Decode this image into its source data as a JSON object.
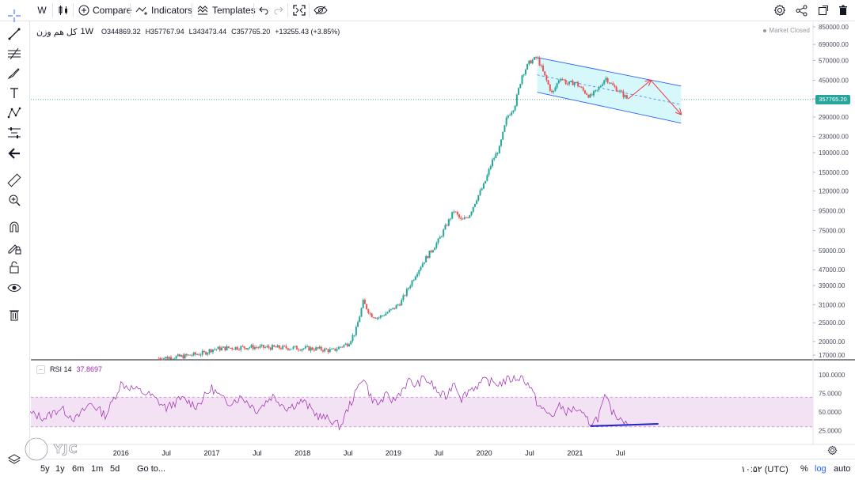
{
  "toolbar": {
    "interval": "W",
    "compare_label": "Compare",
    "indicators_label": "Indicators",
    "templates_label": "Templates"
  },
  "legend": {
    "symbol": "کل هم وزن",
    "timeframe": "1W",
    "open": "O344869.32",
    "high": "H357767.94",
    "low": "L343473.44",
    "close": "C357765.20",
    "change": "+13255.43 (+3.85%)",
    "market_status": "Market Closed"
  },
  "last_price_label": "357765.20",
  "rsi": {
    "title": "RSI 14",
    "value": "37.8697",
    "upper_band": 70,
    "lower_band": 30
  },
  "bottom": {
    "ranges": [
      "5y",
      "1y",
      "6m",
      "1m",
      "5d"
    ],
    "goto_label": "Go to...",
    "clock": "۱۰:۵۲ (UTC)",
    "percent_label": "%",
    "log_label": "log",
    "auto_label": "auto"
  },
  "watermark": "YJC",
  "colors": {
    "up": "#26a69a",
    "down": "#ef5350",
    "rsi_line": "#9c27b0",
    "channel_fill": "#d6f8fb",
    "channel_line": "#2962ff",
    "arrow": "#f23645",
    "rsi_trendline": "#1e22c9"
  },
  "chart_data": [
    {
      "type": "candlestick",
      "scale": "log",
      "price_axis_ticks": [
        17000,
        20000,
        25000,
        31000,
        39000,
        47000,
        59000,
        75000,
        95000,
        120000,
        150000,
        190000,
        230000,
        290000,
        360000,
        450000,
        570000,
        690000,
        850000
      ],
      "price_axis_labels": [
        "17000.00",
        "20000.00",
        "25000.00",
        "31000.00",
        "39000.00",
        "47000.00",
        "59000.00",
        "75000.00",
        "95000.00",
        "120000.00",
        "150000.00",
        "190000.00",
        "230000.00",
        "290000.00",
        "360000.00",
        "450000.00",
        "570000.00",
        "690000.00",
        "850000.00"
      ],
      "time_axis_labels": [
        "2016",
        "Jul",
        "2017",
        "Jul",
        "2018",
        "Jul",
        "2019",
        "Jul",
        "2020",
        "Jul",
        "2021",
        "Jul"
      ],
      "ylim": [
        15500,
        950000
      ],
      "last_price": 357765.2,
      "close_path": [
        [
          "2016-06",
          16400
        ],
        [
          "2016-09",
          16700
        ],
        [
          "2016-12",
          17400
        ],
        [
          "2017-01",
          18200
        ],
        [
          "2017-03",
          18500
        ],
        [
          "2017-06",
          18700
        ],
        [
          "2017-09",
          18600
        ],
        [
          "2017-12",
          18500
        ],
        [
          "2018-03",
          18300
        ],
        [
          "2018-05",
          17900
        ],
        [
          "2018-06",
          18800
        ],
        [
          "2018-07",
          19500
        ],
        [
          "2018-08",
          22500
        ],
        [
          "2018-09",
          32000
        ],
        [
          "2018-10",
          27500
        ],
        [
          "2018-11",
          26500
        ],
        [
          "2018-12",
          28000
        ],
        [
          "2019-01",
          29500
        ],
        [
          "2019-02",
          32000
        ],
        [
          "2019-03",
          38000
        ],
        [
          "2019-04",
          45000
        ],
        [
          "2019-05",
          52000
        ],
        [
          "2019-06",
          59000
        ],
        [
          "2019-07",
          67000
        ],
        [
          "2019-08",
          80000
        ],
        [
          "2019-09",
          95000
        ],
        [
          "2019-10",
          84000
        ],
        [
          "2019-11",
          90000
        ],
        [
          "2019-12",
          110000
        ],
        [
          "2020-01",
          130000
        ],
        [
          "2020-02",
          170000
        ],
        [
          "2020-03",
          200000
        ],
        [
          "2020-04",
          290000
        ],
        [
          "2020-05",
          330000
        ],
        [
          "2020-06",
          480000
        ],
        [
          "2020-07",
          560000
        ],
        [
          "2020-08",
          590000
        ],
        [
          "2020-09",
          470000
        ],
        [
          "2020-10",
          380000
        ],
        [
          "2020-11",
          470000
        ],
        [
          "2020-12",
          430000
        ],
        [
          "2021-01",
          440000
        ],
        [
          "2021-02",
          400000
        ],
        [
          "2021-03",
          370000
        ],
        [
          "2021-04",
          400000
        ],
        [
          "2021-05",
          465000
        ],
        [
          "2021-06",
          420000
        ],
        [
          "2021-07",
          390000
        ],
        [
          "2021-08",
          357765
        ]
      ],
      "annotations": {
        "channel": {
          "upper": [
            [
              "2020-08",
              590000
            ],
            [
              "2022-03",
              420000
            ]
          ],
          "lower": [
            [
              "2020-08",
              390000
            ],
            [
              "2022-03",
              270000
            ]
          ]
        },
        "arrows": [
          [
            [
              "2021-08",
              360000
            ],
            [
              "2021-11",
              450000
            ]
          ],
          [
            [
              "2021-11",
              450000
            ],
            [
              "2022-03",
              300000
            ]
          ]
        ]
      }
    },
    {
      "type": "line",
      "name": "RSI 14",
      "ylim": [
        10,
        105
      ],
      "y_axis_labels": [
        "100.0000",
        "75.0000",
        "50.0000",
        "25.0000"
      ],
      "y_axis_values": [
        100,
        75,
        50,
        25
      ],
      "band": [
        30,
        70
      ],
      "last_value": 37.8697,
      "values": [
        [
          "2015-01",
          48
        ],
        [
          "2015-03",
          42
        ],
        [
          "2015-05",
          55
        ],
        [
          "2015-07",
          40
        ],
        [
          "2015-09",
          62
        ],
        [
          "2015-11",
          45
        ],
        [
          "2016-01",
          88
        ],
        [
          "2016-03",
          80
        ],
        [
          "2016-05",
          72
        ],
        [
          "2016-07",
          55
        ],
        [
          "2016-09",
          68
        ],
        [
          "2016-11",
          58
        ],
        [
          "2017-01",
          82
        ],
        [
          "2017-03",
          62
        ],
        [
          "2017-05",
          70
        ],
        [
          "2017-07",
          52
        ],
        [
          "2017-09",
          72
        ],
        [
          "2017-11",
          55
        ],
        [
          "2018-01",
          65
        ],
        [
          "2018-03",
          45
        ],
        [
          "2018-05",
          38
        ],
        [
          "2018-06",
          30
        ],
        [
          "2018-07",
          55
        ],
        [
          "2018-08",
          75
        ],
        [
          "2018-09",
          99
        ],
        [
          "2018-10",
          70
        ],
        [
          "2018-11",
          60
        ],
        [
          "2018-12",
          72
        ],
        [
          "2019-01",
          65
        ],
        [
          "2019-02",
          78
        ],
        [
          "2019-03",
          92
        ],
        [
          "2019-04",
          85
        ],
        [
          "2019-05",
          96
        ],
        [
          "2019-06",
          88
        ],
        [
          "2019-07",
          75
        ],
        [
          "2019-08",
          70
        ],
        [
          "2019-09",
          92
        ],
        [
          "2019-10",
          68
        ],
        [
          "2019-11",
          80
        ],
        [
          "2019-12",
          85
        ],
        [
          "2020-01",
          92
        ],
        [
          "2020-02",
          90
        ],
        [
          "2020-03",
          88
        ],
        [
          "2020-04",
          93
        ],
        [
          "2020-05",
          95
        ],
        [
          "2020-06",
          97
        ],
        [
          "2020-07",
          85
        ],
        [
          "2020-08",
          62
        ],
        [
          "2020-09",
          50
        ],
        [
          "2020-10",
          45
        ],
        [
          "2020-11",
          58
        ],
        [
          "2020-12",
          50
        ],
        [
          "2021-01",
          55
        ],
        [
          "2021-02",
          45
        ],
        [
          "2021-03",
          35
        ],
        [
          "2021-04",
          42
        ],
        [
          "2021-05",
          70
        ],
        [
          "2021-06",
          48
        ],
        [
          "2021-07",
          42
        ],
        [
          "2021-08",
          37.87
        ]
      ],
      "trendline": [
        [
          "2021-03",
          31
        ],
        [
          "2021-12",
          34
        ]
      ]
    }
  ]
}
